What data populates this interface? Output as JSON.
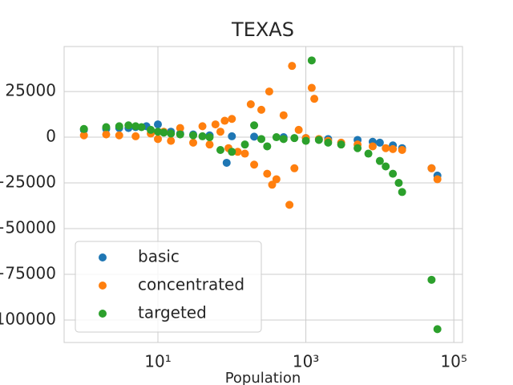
{
  "chart_data": {
    "type": "scatter",
    "title": "TEXAS",
    "x_label": "Population",
    "log_x": true,
    "grid": true,
    "legend": "lower left",
    "xlim": [
      0.54,
      131000
    ],
    "ylim": [
      -112300,
      49600
    ],
    "xticks": [
      {
        "value": 10,
        "label": "10¹"
      },
      {
        "value": 1000,
        "label": "10³"
      },
      {
        "value": 100000,
        "label": "10⁵"
      }
    ],
    "yticks": [
      25000,
      0,
      {
        "value": -25000,
        "label": "−25000"
      },
      {
        "value": -50000,
        "label": "−50000"
      },
      {
        "value": -75000,
        "label": "−75000"
      },
      {
        "value": -100000,
        "label": "−100000"
      }
    ],
    "series": [
      {
        "name": "basic",
        "color": "#1f77b4",
        "x": [
          1,
          2,
          3,
          4,
          5,
          7,
          10,
          15,
          20,
          30,
          50,
          85,
          100,
          200,
          500,
          1000,
          2000,
          5000,
          8000,
          10000,
          15000,
          20000,
          50000,
          60000
        ],
        "values": [
          4000,
          4500,
          5000,
          5000,
          5500,
          6000,
          7000,
          3000,
          2000,
          1500,
          1000,
          -14000,
          500,
          300,
          0,
          -500,
          -1000,
          -1500,
          -2500,
          -3000,
          -4500,
          -6000,
          -17000,
          -21000
        ]
      },
      {
        "name": "concentrated",
        "color": "#ff7f0e",
        "x": [
          1,
          2,
          3,
          5,
          8,
          10,
          12,
          15,
          20,
          30,
          40,
          50,
          60,
          70,
          80,
          90,
          100,
          120,
          150,
          180,
          200,
          250,
          300,
          320,
          350,
          400,
          500,
          600,
          650,
          700,
          800,
          1000,
          1200,
          1300,
          1500,
          2000,
          3000,
          5000,
          8000,
          12000,
          15000,
          20000,
          50000,
          60000
        ],
        "values": [
          1000,
          1500,
          1000,
          500,
          2000,
          -1000,
          3000,
          -2000,
          5000,
          -3000,
          6000,
          -4000,
          7000,
          3000,
          9000,
          -6000,
          10000,
          -8000,
          -9000,
          18000,
          -15000,
          15000,
          -20000,
          25000,
          -26000,
          -23000,
          12000,
          -37000,
          39000,
          -17000,
          4000,
          -500,
          27000,
          21000,
          -1000,
          -2000,
          -3000,
          -4000,
          -5000,
          -6000,
          -6500,
          -7000,
          -17000,
          -23000
        ]
      },
      {
        "name": "targeted",
        "color": "#2ca02c",
        "x": [
          1,
          2,
          3,
          4,
          5,
          6,
          8,
          10,
          12,
          15,
          20,
          30,
          40,
          50,
          70,
          100,
          150,
          200,
          250,
          300,
          400,
          500,
          700,
          1000,
          1200,
          1500,
          2000,
          3000,
          5000,
          7000,
          10000,
          12000,
          15000,
          18000,
          20000,
          50000,
          60000
        ],
        "values": [
          4500,
          5500,
          6000,
          6500,
          6000,
          5500,
          4000,
          3000,
          2500,
          2000,
          1500,
          1000,
          500,
          0,
          -7000,
          -8000,
          -4000,
          6500,
          -1000,
          -5000,
          0,
          -1000,
          -500,
          -2000,
          42000,
          -1500,
          -3000,
          -4000,
          -6000,
          -9000,
          -13000,
          -16000,
          -20000,
          -25000,
          -30000,
          -78000,
          -105000
        ]
      }
    ]
  }
}
